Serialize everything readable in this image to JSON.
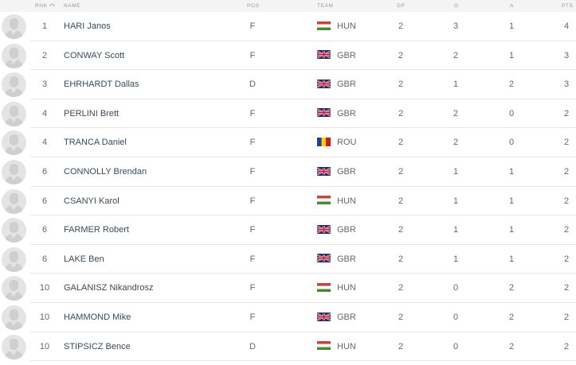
{
  "header": {
    "rank": "RNK",
    "name": "NAME",
    "pos": "POS",
    "team": "TEAM",
    "gp": "GP",
    "g": "G",
    "a": "A",
    "pts": "PTS",
    "sort_icon": "chevron-up-icon"
  },
  "colors": {
    "header_bg": "#f4f4f4",
    "name_text": "#3a4a5a",
    "separator": "#e6e6e6"
  },
  "rows": [
    {
      "rank": "1",
      "name": "HARI Janos",
      "pos": "F",
      "team": "HUN",
      "gp": "2",
      "g": "3",
      "a": "1",
      "pts": "4"
    },
    {
      "rank": "2",
      "name": "CONWAY Scott",
      "pos": "F",
      "team": "GBR",
      "gp": "2",
      "g": "2",
      "a": "1",
      "pts": "3"
    },
    {
      "rank": "3",
      "name": "EHRHARDT Dallas",
      "pos": "D",
      "team": "GBR",
      "gp": "2",
      "g": "1",
      "a": "2",
      "pts": "3"
    },
    {
      "rank": "4",
      "name": "PERLINI Brett",
      "pos": "F",
      "team": "GBR",
      "gp": "2",
      "g": "2",
      "a": "0",
      "pts": "2"
    },
    {
      "rank": "4",
      "name": "TRANCA Daniel",
      "pos": "F",
      "team": "ROU",
      "gp": "2",
      "g": "2",
      "a": "0",
      "pts": "2"
    },
    {
      "rank": "6",
      "name": "CONNOLLY Brendan",
      "pos": "F",
      "team": "GBR",
      "gp": "2",
      "g": "1",
      "a": "1",
      "pts": "2"
    },
    {
      "rank": "6",
      "name": "CSANYI Karol",
      "pos": "F",
      "team": "HUN",
      "gp": "2",
      "g": "1",
      "a": "1",
      "pts": "2"
    },
    {
      "rank": "6",
      "name": "FARMER Robert",
      "pos": "F",
      "team": "GBR",
      "gp": "2",
      "g": "1",
      "a": "1",
      "pts": "2"
    },
    {
      "rank": "6",
      "name": "LAKE Ben",
      "pos": "F",
      "team": "GBR",
      "gp": "2",
      "g": "1",
      "a": "1",
      "pts": "2"
    },
    {
      "rank": "10",
      "name": "GALANISZ Nikandrosz",
      "pos": "F",
      "team": "HUN",
      "gp": "2",
      "g": "0",
      "a": "2",
      "pts": "2"
    },
    {
      "rank": "10",
      "name": "HAMMOND Mike",
      "pos": "F",
      "team": "GBR",
      "gp": "2",
      "g": "0",
      "a": "2",
      "pts": "2"
    },
    {
      "rank": "10",
      "name": "STIPSICZ Bence",
      "pos": "D",
      "team": "HUN",
      "gp": "2",
      "g": "0",
      "a": "2",
      "pts": "2"
    }
  ]
}
